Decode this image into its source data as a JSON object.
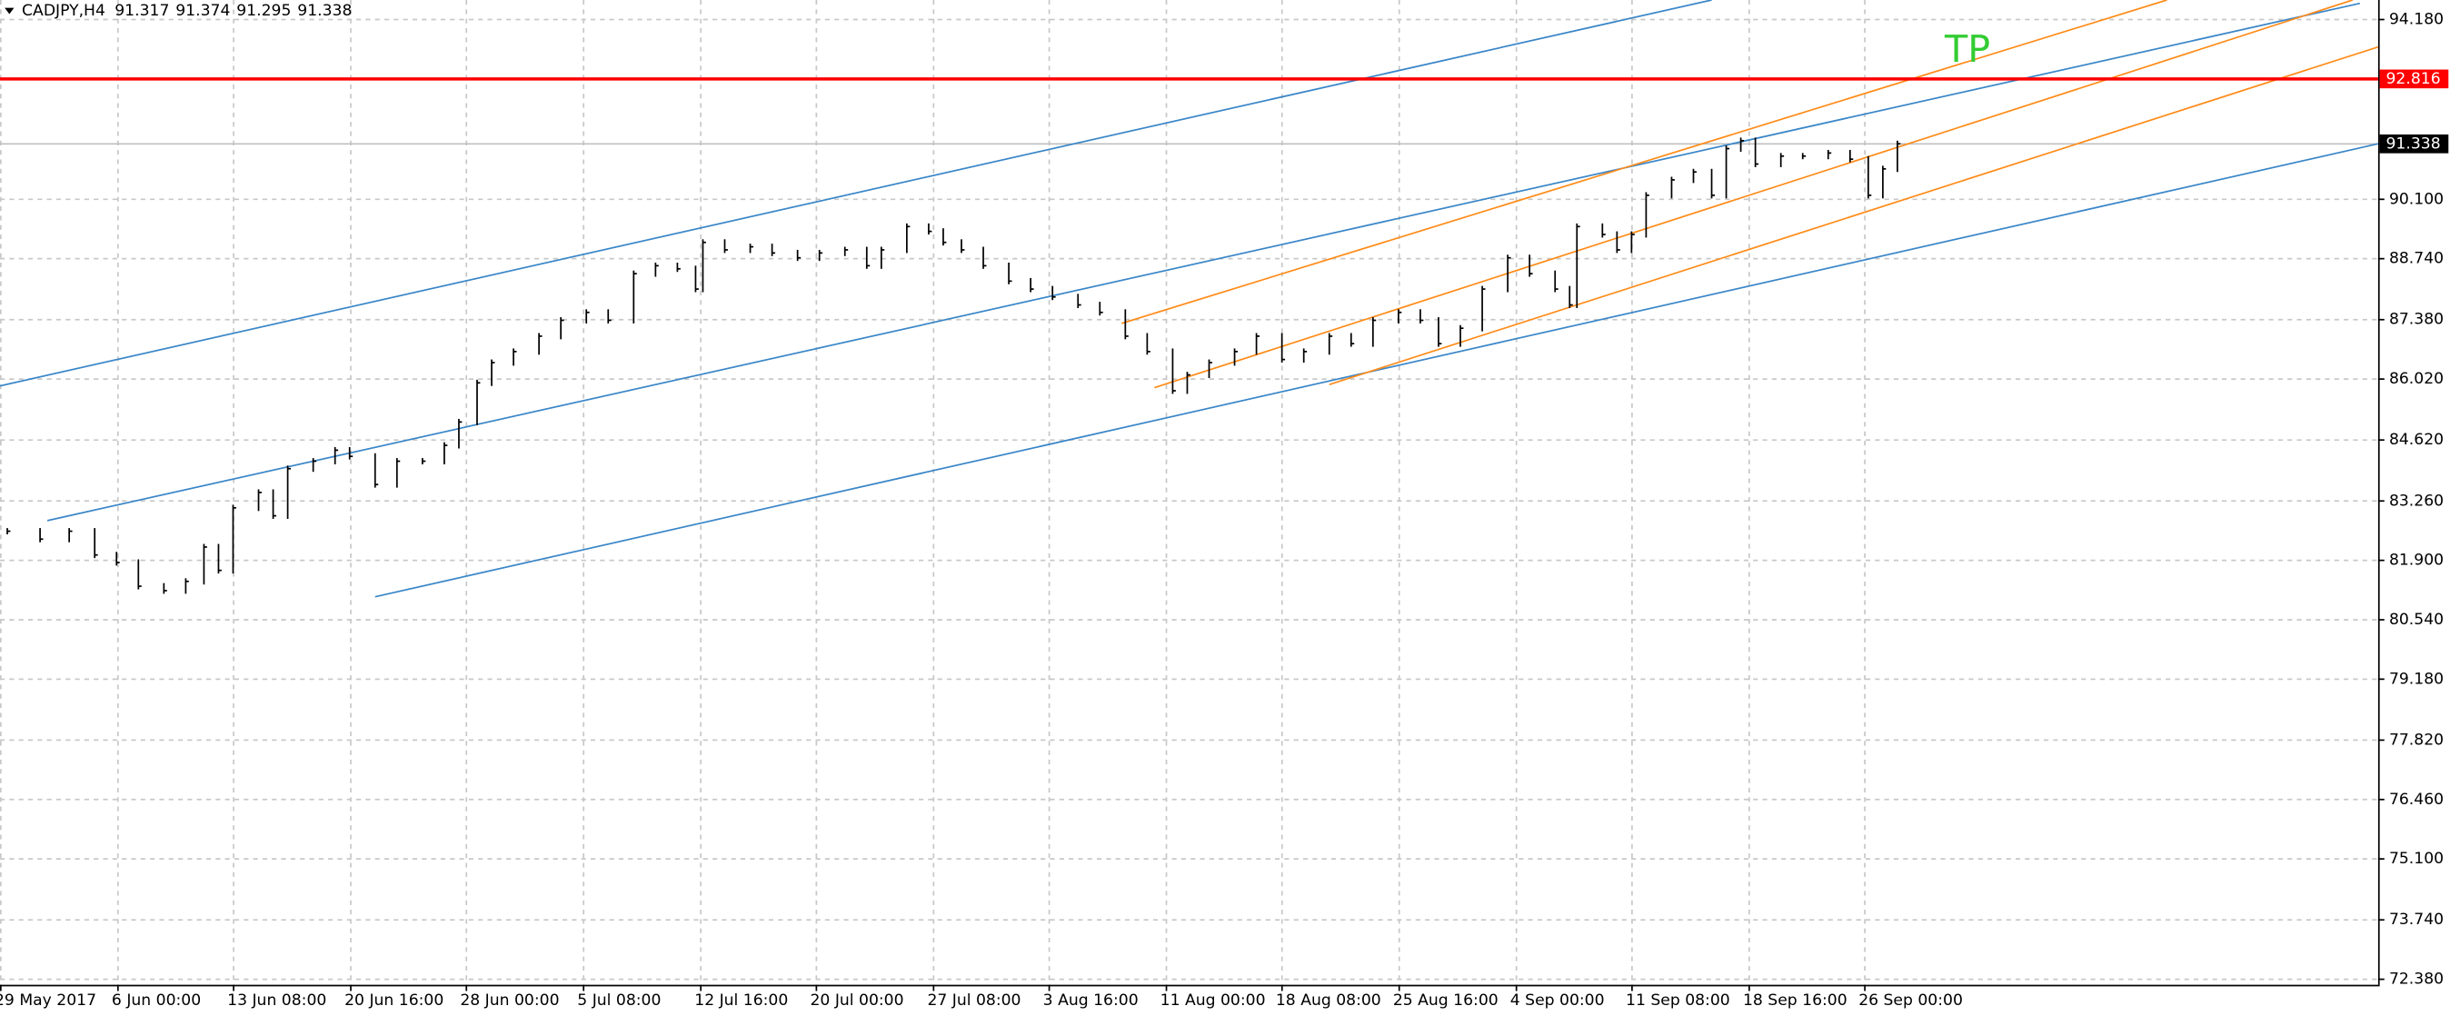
{
  "chart_data": {
    "type": "ohlc",
    "title": "CADJPY,H4",
    "header_values": [
      91.317,
      91.374,
      91.295,
      91.338
    ],
    "color": "#000000",
    "x": [
      0,
      9,
      17,
      24,
      30,
      36,
      43,
      49,
      54,
      58,
      62,
      69,
      73,
      77,
      84,
      90,
      94,
      101,
      107,
      114,
      120,
      124,
      129,
      133,
      139,
      146,
      152,
      159,
      165,
      172,
      178,
      184,
      189,
      191,
      197,
      204,
      210,
      217,
      223,
      230,
      236,
      240,
      247,
      253,
      257,
      262,
      268,
      275,
      281,
      287,
      294,
      300,
      307,
      313,
      320,
      324,
      330,
      337,
      343,
      350,
      356,
      363,
      369,
      375,
      382,
      388,
      393,
      399,
      405,
      412,
      418,
      425,
      429,
      431,
      438,
      442,
      446,
      450,
      457,
      463,
      468,
      472,
      476,
      480,
      487,
      493,
      500,
      506,
      511,
      515,
      519
    ],
    "values": [
      82.54,
      82.36,
      82.54,
      82.0,
      81.83,
      81.29,
      81.19,
      81.4,
      82.18,
      81.65,
      83.07,
      83.42,
      82.89,
      83.96,
      84.13,
      84.38,
      84.24,
      83.6,
      84.13,
      84.13,
      84.49,
      85.02,
      85.91,
      86.37,
      86.62,
      86.97,
      87.33,
      87.51,
      87.33,
      88.39,
      88.57,
      88.5,
      88.04,
      89.1,
      88.93,
      89.0,
      88.86,
      88.75,
      88.86,
      88.93,
      88.57,
      88.93,
      89.46,
      89.35,
      89.1,
      88.93,
      88.57,
      88.22,
      88.04,
      87.86,
      87.68,
      87.51,
      86.97,
      86.62,
      85.73,
      86.09,
      86.37,
      86.62,
      86.97,
      86.44,
      86.62,
      86.97,
      86.8,
      87.33,
      87.51,
      87.33,
      86.8,
      87.15,
      88.04,
      88.75,
      88.39,
      88.04,
      87.68,
      89.46,
      89.28,
      88.93,
      89.28,
      90.17,
      90.52,
      90.7,
      90.17,
      91.23,
      91.41,
      90.88,
      91.06,
      91.06,
      91.13,
      90.99,
      90.17,
      90.77,
      91.34
    ],
    "xlim": [
      -2,
      651
    ],
    "ylim": [
      72.238,
      94.606
    ],
    "xticks": [
      {
        "value": -2,
        "label": "29 May 2017"
      },
      {
        "value": 30,
        "label": "6 Jun 00:00"
      },
      {
        "value": 62,
        "label": "13 Jun 08:00"
      },
      {
        "value": 94,
        "label": "20 Jun 16:00"
      },
      {
        "value": 126,
        "label": "28 Jun 00:00"
      },
      {
        "value": 158,
        "label": "5 Jul 08:00"
      },
      {
        "value": 190,
        "label": "12 Jul 16:00"
      },
      {
        "value": 222,
        "label": "20 Jul 00:00"
      },
      {
        "value": 254,
        "label": "27 Jul 08:00"
      },
      {
        "value": 286,
        "label": "3 Aug 16:00"
      },
      {
        "value": 318,
        "label": "11 Aug 00:00"
      },
      {
        "value": 350,
        "label": "18 Aug 08:00"
      },
      {
        "value": 382,
        "label": "25 Aug 16:00"
      },
      {
        "value": 414,
        "label": "4 Sep 00:00"
      },
      {
        "value": 446,
        "label": "11 Sep 08:00"
      },
      {
        "value": 478,
        "label": "18 Sep 16:00"
      },
      {
        "value": 510,
        "label": "26 Sep 00:00"
      }
    ],
    "yticks": [
      {
        "value": 94.18,
        "label": "94.180"
      },
      {
        "value": 90.1,
        "label": "90.100"
      },
      {
        "value": 88.74,
        "label": "88.740"
      },
      {
        "value": 87.38,
        "label": "87.380"
      },
      {
        "value": 86.02,
        "label": "86.020"
      },
      {
        "value": 84.62,
        "label": "84.620"
      },
      {
        "value": 83.26,
        "label": "83.260"
      },
      {
        "value": 81.9,
        "label": "81.900"
      },
      {
        "value": 80.54,
        "label": "80.540"
      },
      {
        "value": 79.18,
        "label": "79.180"
      },
      {
        "value": 77.82,
        "label": "77.820"
      },
      {
        "value": 76.46,
        "label": "76.460"
      },
      {
        "value": 75.1,
        "label": "75.100"
      },
      {
        "value": 73.74,
        "label": "73.740"
      },
      {
        "value": 72.38,
        "label": "72.380"
      }
    ],
    "grid": true,
    "trendlines": [
      {
        "color": "#3a86c8",
        "x": [
          -2,
          468
        ],
        "y": [
          85.84,
          94.606
        ]
      },
      {
        "color": "#3a86c8",
        "x": [
          11,
          646
        ],
        "y": [
          82.78,
          94.53
        ]
      },
      {
        "color": "#3a86c8",
        "x": [
          101,
          651
        ],
        "y": [
          81.05,
          91.34
        ]
      },
      {
        "color": "#ff8c1a",
        "x": [
          306,
          593
        ],
        "y": [
          87.26,
          94.606
        ]
      },
      {
        "color": "#ff8c1a",
        "x": [
          315,
          644
        ],
        "y": [
          85.8,
          94.606
        ]
      },
      {
        "color": "#ff8c1a",
        "x": [
          363,
          651
        ],
        "y": [
          85.87,
          93.54
        ]
      }
    ],
    "hline": {
      "value": 92.816,
      "color": "#ff0000"
    },
    "last_price": 91.338,
    "annotation": {
      "text": "TP",
      "color": "#33cc33",
      "x": 532,
      "y": 93.43
    }
  }
}
